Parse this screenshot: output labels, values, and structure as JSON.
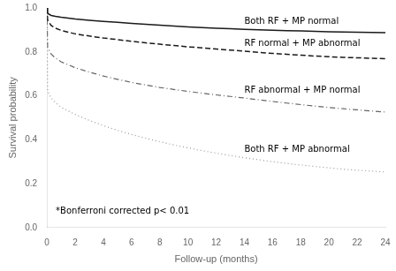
{
  "chart_data": {
    "type": "line",
    "xlabel": "Follow-up (months)",
    "ylabel": "Survival probability",
    "x": [
      0,
      0.05,
      0.3,
      0.6,
      1,
      2,
      3,
      4,
      5,
      6,
      7,
      8,
      9,
      10,
      11,
      12,
      13,
      14,
      15,
      16,
      17,
      18,
      19,
      20,
      21,
      22,
      23,
      24
    ],
    "series": [
      {
        "name": "Both RF + MP normal",
        "color": "#1a1a1a",
        "line_style": "solid",
        "values": [
          1.0,
          0.975,
          0.966,
          0.962,
          0.958,
          0.95,
          0.944,
          0.939,
          0.935,
          0.93,
          0.926,
          0.922,
          0.918,
          0.914,
          0.911,
          0.908,
          0.906,
          0.903,
          0.901,
          0.899,
          0.897,
          0.895,
          0.893,
          0.891,
          0.89,
          0.889,
          0.888,
          0.887
        ]
      },
      {
        "name": "RF normal + MP abnormal",
        "color": "#1a1a1a",
        "line_style": "dashed",
        "values": [
          1.0,
          0.945,
          0.92,
          0.908,
          0.898,
          0.882,
          0.872,
          0.863,
          0.856,
          0.848,
          0.841,
          0.835,
          0.829,
          0.823,
          0.818,
          0.813,
          0.808,
          0.803,
          0.798,
          0.793,
          0.789,
          0.785,
          0.781,
          0.778,
          0.775,
          0.773,
          0.771,
          0.769
        ]
      },
      {
        "name": "RF abnormal + MP normal",
        "color": "#666666",
        "line_style": "dashdot",
        "values": [
          1.0,
          0.82,
          0.79,
          0.772,
          0.755,
          0.728,
          0.708,
          0.69,
          0.675,
          0.661,
          0.649,
          0.638,
          0.629,
          0.62,
          0.612,
          0.604,
          0.597,
          0.59,
          0.582,
          0.574,
          0.567,
          0.56,
          0.553,
          0.547,
          0.541,
          0.536,
          0.531,
          0.526
        ]
      },
      {
        "name": "Both RF + MP abnormal",
        "color": "#999999",
        "line_style": "dotted",
        "values": [
          1.0,
          0.62,
          0.59,
          0.57,
          0.548,
          0.515,
          0.488,
          0.464,
          0.443,
          0.424,
          0.407,
          0.391,
          0.376,
          0.363,
          0.35,
          0.339,
          0.328,
          0.318,
          0.309,
          0.3,
          0.292,
          0.285,
          0.278,
          0.272,
          0.266,
          0.261,
          0.257,
          0.253
        ]
      }
    ],
    "xlim": [
      0,
      24
    ],
    "ylim": [
      0.0,
      1.0
    ],
    "xticks": [
      0,
      2,
      4,
      6,
      8,
      10,
      12,
      14,
      16,
      18,
      20,
      22,
      24
    ],
    "yticks": [
      {
        "value": 0.0,
        "label": "0.0"
      },
      {
        "value": 0.2,
        "label": "0.2"
      },
      {
        "value": 0.4,
        "label": "0.4"
      },
      {
        "value": 0.6,
        "label": "0.6"
      },
      {
        "value": 0.8,
        "label": "0.8"
      },
      {
        "value": 1.0,
        "label": "1.0"
      }
    ],
    "annotation": "*Bonferroni corrected p< 0.01",
    "grid": false
  }
}
